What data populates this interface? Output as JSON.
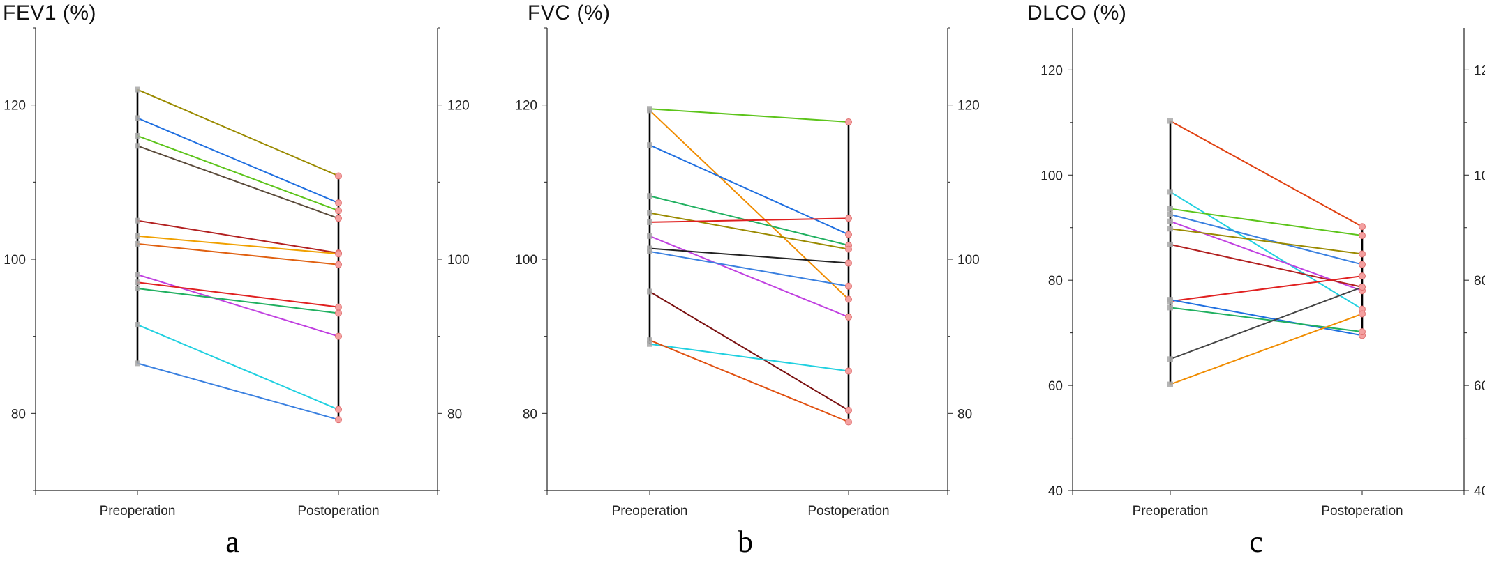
{
  "chart_data": [
    {
      "type": "line",
      "panel": "a",
      "title": "FEV1 (%)",
      "categories": [
        "Preoperation",
        "Postoperation"
      ],
      "ylim": [
        70,
        130
      ],
      "yticks": [
        "80",
        "100",
        "120"
      ],
      "grid": false,
      "series": [
        {
          "color": "#9a8a00",
          "values": [
            122,
            110.8
          ]
        },
        {
          "color": "#1f6fe0",
          "values": [
            118.3,
            107.3
          ]
        },
        {
          "color": "#5cc41a",
          "values": [
            116,
            106.3
          ]
        },
        {
          "color": "#5a4a3a",
          "values": [
            114.7,
            105.3
          ]
        },
        {
          "color": "#b22020",
          "values": [
            105,
            100.8
          ]
        },
        {
          "color": "#f0a000",
          "values": [
            103,
            100.7
          ]
        },
        {
          "color": "#e06010",
          "values": [
            102,
            99.3
          ]
        },
        {
          "color": "#c040e0",
          "values": [
            98,
            90
          ]
        },
        {
          "color": "#e02020",
          "values": [
            97,
            93.8
          ]
        },
        {
          "color": "#20b060",
          "values": [
            96.2,
            93
          ]
        },
        {
          "color": "#20d0e0",
          "values": [
            91.5,
            80.5
          ]
        },
        {
          "color": "#3a80e0",
          "values": [
            86.5,
            79.2
          ]
        }
      ]
    },
    {
      "type": "line",
      "panel": "b",
      "title": "FVC (%)",
      "categories": [
        "Preoperation",
        "Postoperation"
      ],
      "ylim": [
        70,
        130
      ],
      "yticks": [
        "80",
        "100",
        "120"
      ],
      "grid": false,
      "series": [
        {
          "color": "#5cc41a",
          "values": [
            119.5,
            117.8
          ]
        },
        {
          "color": "#f08c00",
          "values": [
            119.3,
            94.8
          ]
        },
        {
          "color": "#1f6fe0",
          "values": [
            114.8,
            103.2
          ]
        },
        {
          "color": "#20b060",
          "values": [
            108.2,
            101.8
          ]
        },
        {
          "color": "#9a8a00",
          "values": [
            106,
            101.3
          ]
        },
        {
          "color": "#e02020",
          "values": [
            104.8,
            105.3
          ]
        },
        {
          "color": "#c040e0",
          "values": [
            103,
            92.5
          ]
        },
        {
          "color": "#222222",
          "values": [
            101.4,
            99.5
          ]
        },
        {
          "color": "#3a80e0",
          "values": [
            101,
            96.5
          ]
        },
        {
          "color": "#7a1010",
          "values": [
            95.8,
            80.4
          ]
        },
        {
          "color": "#20d0e0",
          "values": [
            89,
            85.5
          ]
        },
        {
          "color": "#e05010",
          "values": [
            89.5,
            78.9
          ]
        }
      ]
    },
    {
      "type": "line",
      "panel": "c",
      "title": "DLCO (%)",
      "categories": [
        "Preoperation",
        "Postoperation"
      ],
      "ylim": [
        40,
        128
      ],
      "yticks": [
        "40",
        "60",
        "80",
        "100",
        "120"
      ],
      "grid": false,
      "series": [
        {
          "color": "#e04010",
          "values": [
            110.3,
            90.2
          ]
        },
        {
          "color": "#20d0e0",
          "values": [
            96.8,
            74.5
          ]
        },
        {
          "color": "#5cc41a",
          "values": [
            93.6,
            88.5
          ]
        },
        {
          "color": "#3a80e0",
          "values": [
            92.5,
            83
          ]
        },
        {
          "color": "#c040e0",
          "values": [
            91.2,
            78
          ]
        },
        {
          "color": "#9a8a00",
          "values": [
            89.8,
            85
          ]
        },
        {
          "color": "#b22020",
          "values": [
            86.8,
            78.7
          ]
        },
        {
          "color": "#e02020",
          "values": [
            76,
            80.8
          ]
        },
        {
          "color": "#1f6fe0",
          "values": [
            76.3,
            69.5
          ]
        },
        {
          "color": "#20b060",
          "values": [
            74.8,
            70.2
          ]
        },
        {
          "color": "#444444",
          "values": [
            65,
            78.7
          ]
        },
        {
          "color": "#f08c00",
          "values": [
            60.2,
            73.6
          ]
        }
      ]
    }
  ],
  "panels": {
    "a": {
      "letter": "a"
    },
    "b": {
      "letter": "b"
    },
    "c": {
      "letter": "c"
    }
  }
}
